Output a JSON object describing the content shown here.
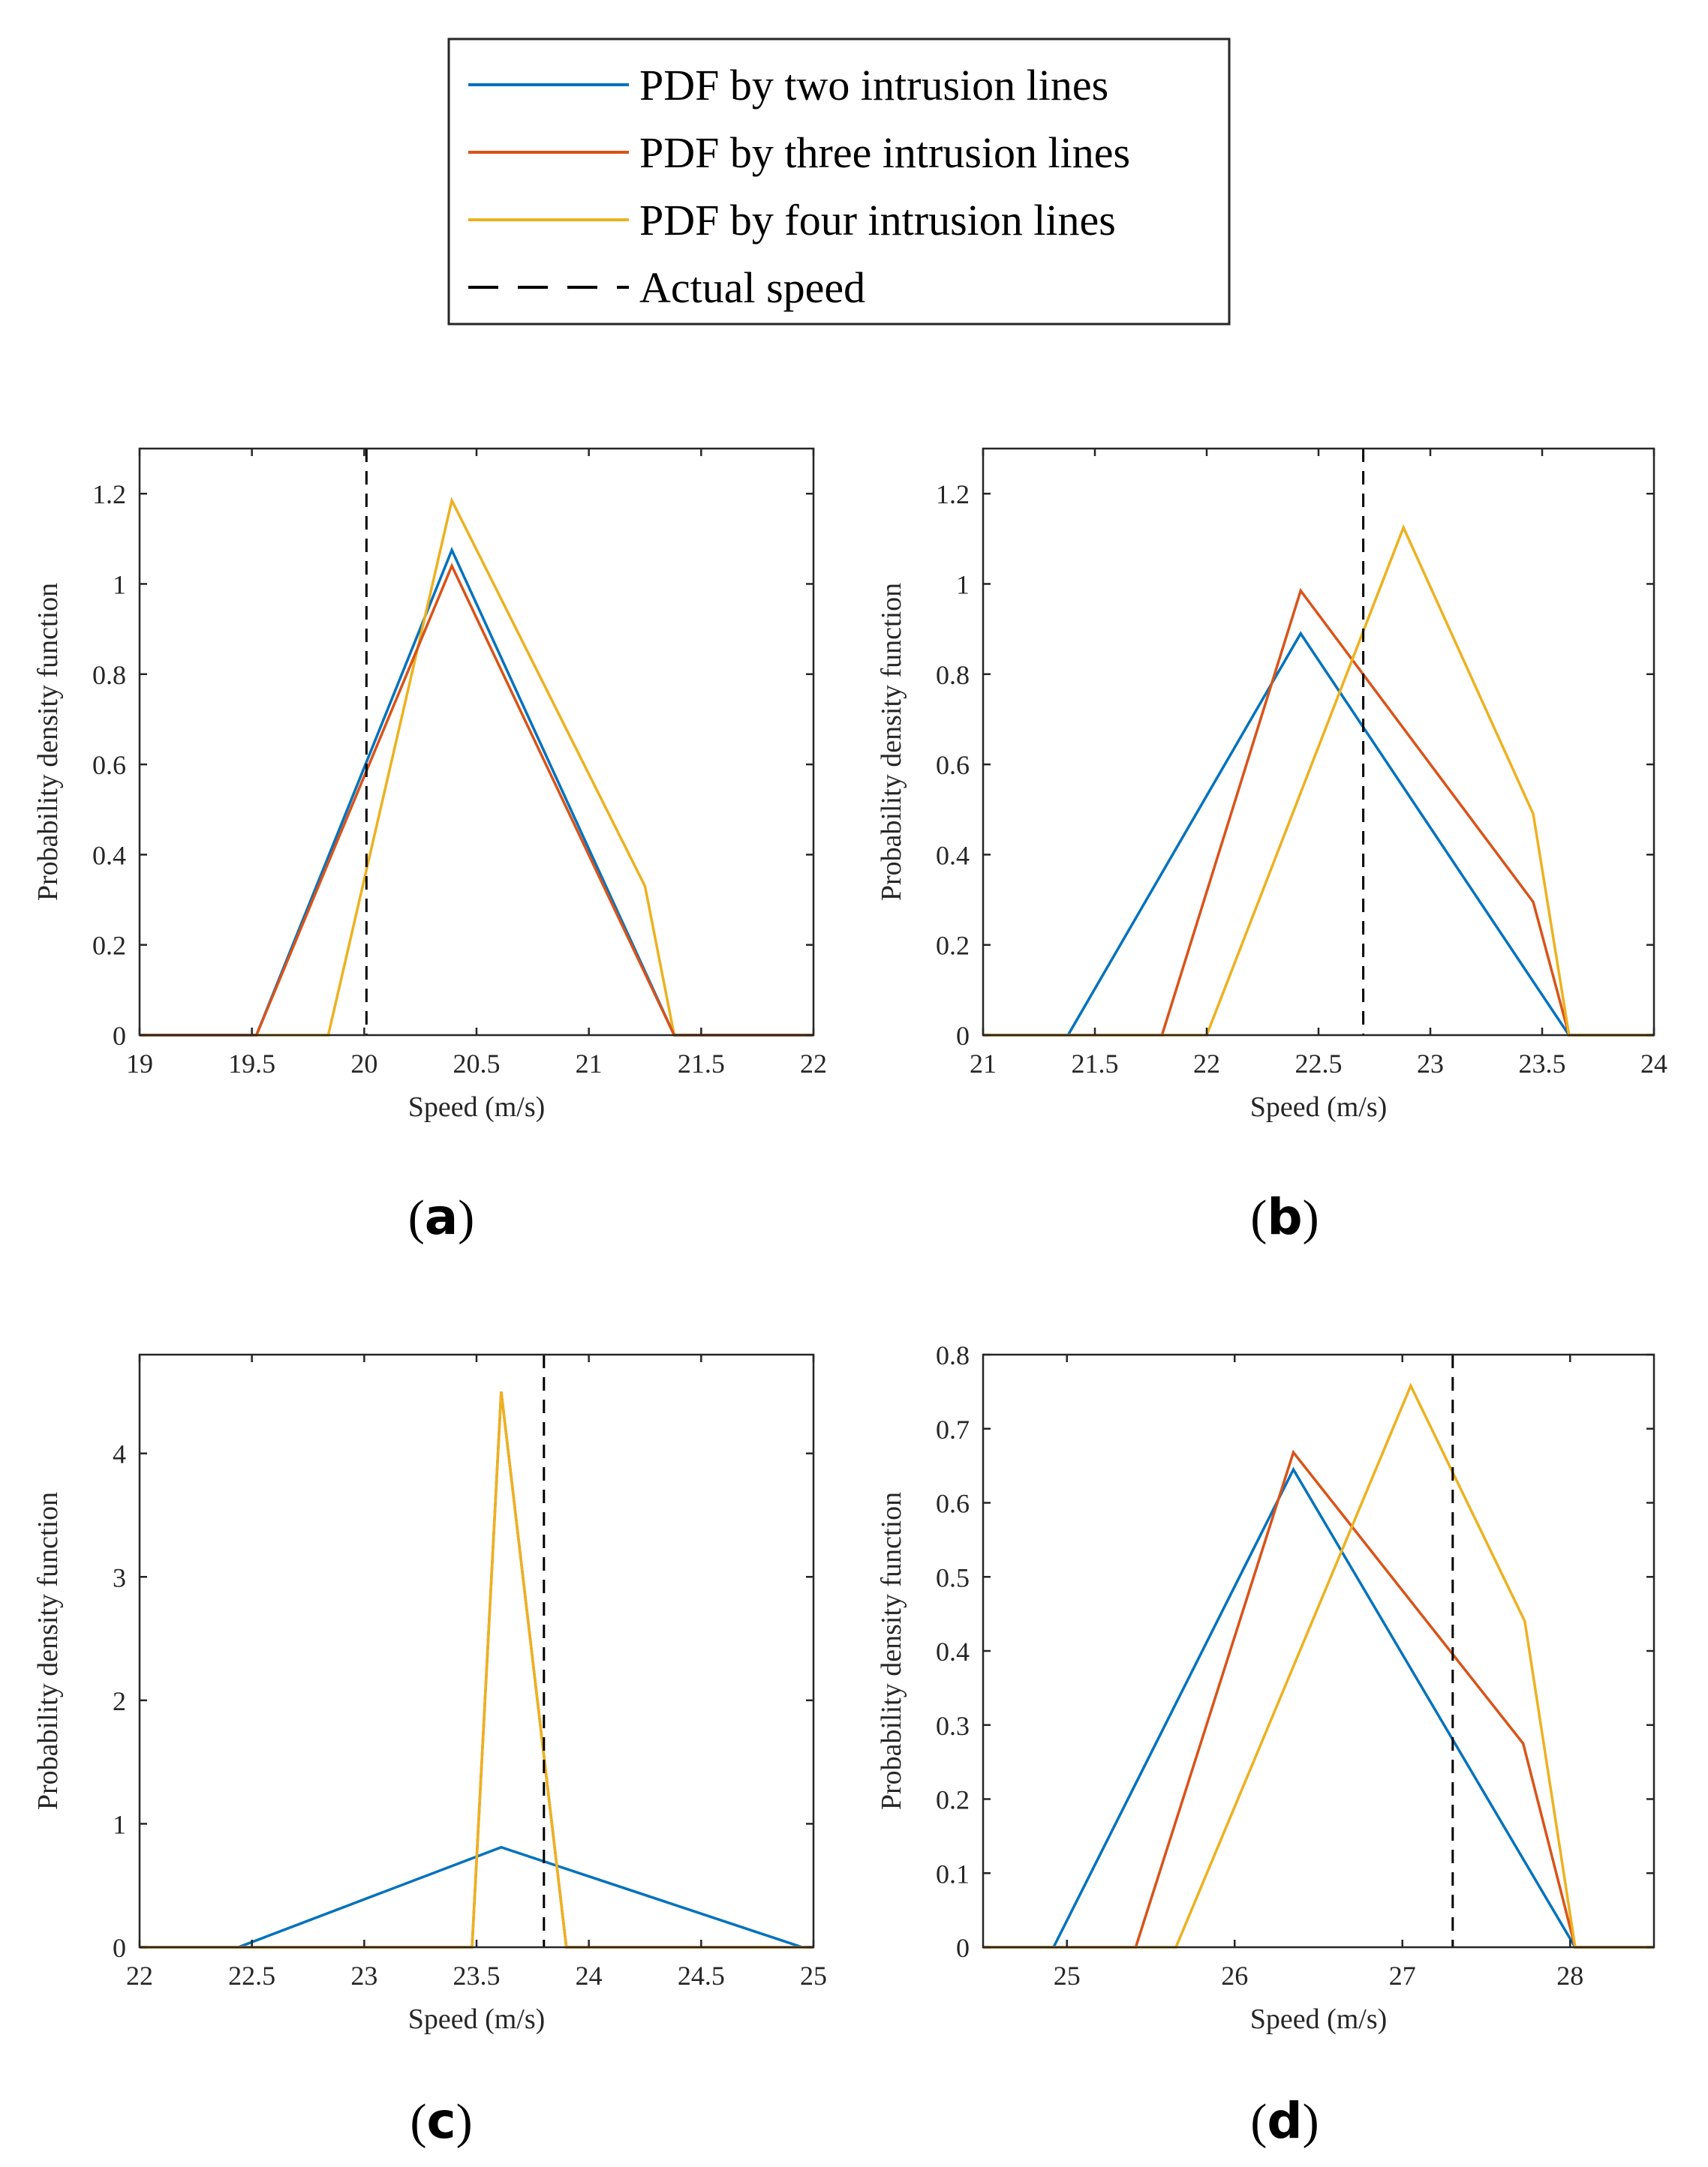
{
  "legend": {
    "entries": [
      {
        "label": "PDF by two intrusion lines",
        "color": "#0072BD",
        "dash": false
      },
      {
        "label": "PDF by three intrusion lines",
        "color": "#D95319",
        "dash": false
      },
      {
        "label": "PDF by four intrusion lines",
        "color": "#EDB120",
        "dash": false
      },
      {
        "label": "Actual speed",
        "color": "#000000",
        "dash": true
      }
    ]
  },
  "chart_data": [
    {
      "type": "line",
      "panel": "a",
      "xlabel": "Speed (m/s)",
      "ylabel": "Probability density function",
      "xlim": [
        19,
        22
      ],
      "ylim": [
        0,
        1.3
      ],
      "xticks": [
        19,
        19.5,
        20,
        20.5,
        21,
        21.5,
        22
      ],
      "yticks": [
        0,
        0.2,
        0.4,
        0.6,
        0.8,
        1,
        1.2
      ],
      "actual_speed": 20.01,
      "series": [
        {
          "color": "#0072BD",
          "x": [
            19,
            19.52,
            20.39,
            21.38,
            22
          ],
          "y": [
            0,
            0,
            1.075,
            0,
            0
          ]
        },
        {
          "color": "#EDB120",
          "x": [
            19,
            19.84,
            20.39,
            21.25,
            21.38,
            22
          ],
          "y": [
            0,
            0,
            1.185,
            0.33,
            0,
            0
          ]
        },
        {
          "color": "#D95319",
          "x": [
            19,
            19.52,
            20.39,
            21.38,
            22
          ],
          "y": [
            0,
            0,
            1.04,
            0,
            0
          ]
        }
      ]
    },
    {
      "type": "line",
      "panel": "b",
      "xlabel": "Speed (m/s)",
      "ylabel": "Probability density function",
      "xlim": [
        21,
        24
      ],
      "ylim": [
        0,
        1.3
      ],
      "xticks": [
        21,
        21.5,
        22,
        22.5,
        23,
        23.5,
        24
      ],
      "yticks": [
        0,
        0.2,
        0.4,
        0.6,
        0.8,
        1,
        1.2
      ],
      "actual_speed": 22.7,
      "series": [
        {
          "color": "#0072BD",
          "x": [
            21,
            21.38,
            22.42,
            23.62,
            24
          ],
          "y": [
            0,
            0,
            0.89,
            0,
            0
          ]
        },
        {
          "color": "#D95319",
          "x": [
            21,
            21.8,
            22.42,
            23.46,
            23.62,
            24
          ],
          "y": [
            0,
            0,
            0.985,
            0.295,
            0,
            0
          ]
        },
        {
          "color": "#EDB120",
          "x": [
            21,
            22.0,
            22.88,
            23.46,
            23.62,
            24
          ],
          "y": [
            0,
            0,
            1.125,
            0.49,
            0,
            0
          ]
        }
      ]
    },
    {
      "type": "line",
      "panel": "c",
      "xlabel": "Speed (m/s)",
      "ylabel": "Probability density function",
      "xlim": [
        22,
        25
      ],
      "ylim": [
        0,
        4.8
      ],
      "xticks": [
        22,
        22.5,
        23,
        23.5,
        24,
        24.5,
        25
      ],
      "yticks": [
        0,
        1,
        2,
        3,
        4
      ],
      "actual_speed": 23.8,
      "series": [
        {
          "color": "#0072BD",
          "x": [
            22,
            22.44,
            23.61,
            24.95,
            25
          ],
          "y": [
            0,
            0,
            0.81,
            0,
            0
          ]
        },
        {
          "color": "#D95319",
          "x": [
            22,
            23.48,
            23.61,
            23.9,
            25
          ],
          "y": [
            0,
            0,
            4.5,
            0,
            0
          ]
        },
        {
          "color": "#EDB120",
          "x": [
            22,
            23.48,
            23.61,
            23.9,
            25
          ],
          "y": [
            0,
            0,
            4.5,
            0,
            0
          ]
        }
      ]
    },
    {
      "type": "line",
      "panel": "d",
      "xlabel": "Speed (m/s)",
      "ylabel": "Probability density function",
      "xlim": [
        24.5,
        28.5
      ],
      "ylim": [
        0,
        0.8
      ],
      "xticks": [
        25,
        26,
        27,
        28
      ],
      "yticks": [
        0,
        0.1,
        0.2,
        0.3,
        0.4,
        0.5,
        0.6,
        0.7,
        0.8
      ],
      "actual_speed": 27.3,
      "series": [
        {
          "color": "#0072BD",
          "x": [
            24.5,
            24.92,
            26.35,
            28.03,
            28.5
          ],
          "y": [
            0,
            0,
            0.645,
            0,
            0
          ]
        },
        {
          "color": "#D95319",
          "x": [
            24.5,
            25.41,
            26.35,
            27.72,
            28.03,
            28.5
          ],
          "y": [
            0,
            0,
            0.668,
            0.275,
            0,
            0
          ]
        },
        {
          "color": "#EDB120",
          "x": [
            24.5,
            25.65,
            27.05,
            27.73,
            28.03,
            28.5
          ],
          "y": [
            0,
            0,
            0.758,
            0.44,
            0,
            0
          ]
        }
      ]
    }
  ],
  "panel_labels": [
    "a",
    "b",
    "c",
    "d"
  ]
}
